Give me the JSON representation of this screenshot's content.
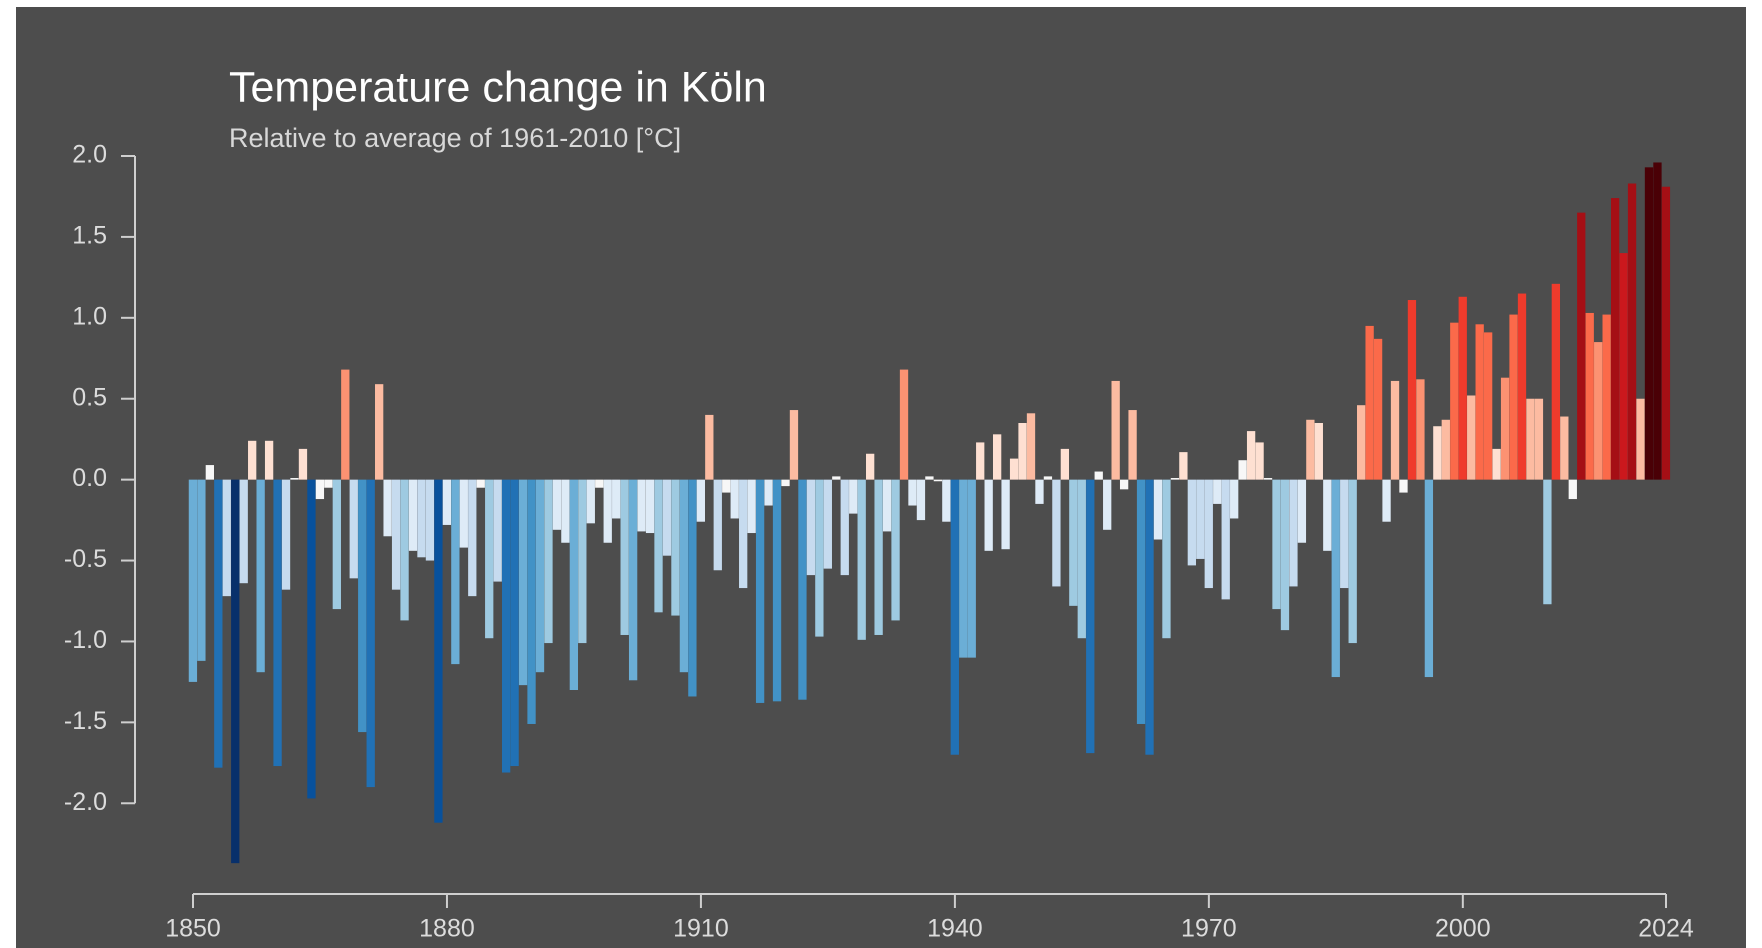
{
  "chart_data": {
    "type": "bar",
    "title": "Temperature change in Köln",
    "subtitle": "Relative to average of 1961-2010  [°C]",
    "x": [
      1850,
      1851,
      1852,
      1853,
      1854,
      1855,
      1856,
      1857,
      1858,
      1859,
      1860,
      1861,
      1862,
      1863,
      1864,
      1865,
      1866,
      1867,
      1868,
      1869,
      1870,
      1871,
      1872,
      1873,
      1874,
      1875,
      1876,
      1877,
      1878,
      1879,
      1880,
      1881,
      1882,
      1883,
      1884,
      1885,
      1886,
      1887,
      1888,
      1889,
      1890,
      1891,
      1892,
      1893,
      1894,
      1895,
      1896,
      1897,
      1898,
      1899,
      1900,
      1901,
      1902,
      1903,
      1904,
      1905,
      1906,
      1907,
      1908,
      1909,
      1910,
      1911,
      1912,
      1913,
      1914,
      1915,
      1916,
      1917,
      1918,
      1919,
      1920,
      1921,
      1922,
      1923,
      1924,
      1925,
      1926,
      1927,
      1928,
      1929,
      1930,
      1931,
      1932,
      1933,
      1934,
      1935,
      1936,
      1937,
      1938,
      1939,
      1940,
      1941,
      1942,
      1943,
      1944,
      1945,
      1946,
      1947,
      1948,
      1949,
      1950,
      1951,
      1952,
      1953,
      1954,
      1955,
      1956,
      1957,
      1958,
      1959,
      1960,
      1961,
      1962,
      1963,
      1964,
      1965,
      1966,
      1967,
      1968,
      1969,
      1970,
      1971,
      1972,
      1973,
      1974,
      1975,
      1976,
      1977,
      1978,
      1979,
      1980,
      1981,
      1982,
      1983,
      1984,
      1985,
      1986,
      1987,
      1988,
      1989,
      1990,
      1991,
      1992,
      1993,
      1994,
      1995,
      1996,
      1997,
      1998,
      1999,
      2000,
      2001,
      2002,
      2003,
      2004,
      2005,
      2006,
      2007,
      2008,
      2009,
      2010,
      2011,
      2012,
      2013,
      2014,
      2015,
      2016,
      2017,
      2018,
      2019,
      2020,
      2021,
      2022,
      2023,
      2024
    ],
    "values": [
      -1.25,
      -1.12,
      0.09,
      -1.78,
      -0.72,
      -2.37,
      -0.64,
      0.24,
      -1.19,
      0.24,
      -1.77,
      -0.68,
      0.01,
      0.19,
      -1.97,
      -0.12,
      -0.05,
      -0.8,
      0.68,
      -0.61,
      -1.56,
      -1.9,
      0.59,
      -0.35,
      -0.68,
      -0.87,
      -0.44,
      -0.48,
      -0.5,
      -2.12,
      -0.28,
      -1.14,
      -0.42,
      -0.72,
      -0.05,
      -0.98,
      -0.63,
      -1.81,
      -1.77,
      -1.27,
      -1.51,
      -1.19,
      -1.01,
      -0.31,
      -0.39,
      -1.3,
      -1.01,
      -0.27,
      -0.05,
      -0.39,
      -0.24,
      -0.96,
      -1.24,
      -0.32,
      -0.33,
      -0.82,
      -0.47,
      -0.84,
      -1.19,
      -1.34,
      -0.26,
      0.4,
      -0.56,
      -0.08,
      -0.24,
      -0.67,
      -0.33,
      -1.38,
      -0.16,
      -1.37,
      -0.04,
      0.43,
      -1.36,
      -0.59,
      -0.97,
      -0.55,
      0.02,
      -0.59,
      -0.21,
      -0.99,
      0.16,
      -0.96,
      -0.32,
      -0.87,
      0.68,
      -0.16,
      -0.25,
      0.02,
      -0.01,
      -0.26,
      -1.7,
      -1.1,
      -1.1,
      0.23,
      -0.44,
      0.28,
      -0.43,
      0.13,
      0.35,
      0.41,
      -0.15,
      0.02,
      -0.66,
      0.19,
      -0.78,
      -0.98,
      -1.69,
      0.05,
      -0.31,
      0.61,
      -0.06,
      0.43,
      -1.51,
      -1.7,
      -0.37,
      -0.98,
      0.01,
      0.17,
      -0.53,
      -0.49,
      -0.67,
      -0.15,
      -0.74,
      -0.24,
      0.12,
      0.3,
      0.23,
      0.01,
      -0.8,
      -0.93,
      -0.66,
      -0.39,
      0.37,
      0.35,
      -0.44,
      -1.22,
      -0.67,
      -1.01,
      0.46,
      0.95,
      0.87,
      -0.26,
      0.61,
      -0.08,
      1.11,
      0.62,
      -1.22,
      0.33,
      0.37,
      0.97,
      1.13,
      0.52,
      0.96,
      0.91,
      0.19,
      0.63,
      1.02,
      1.15,
      0.5,
      0.5,
      -0.77,
      1.21,
      0.39,
      -0.12,
      1.65,
      1.03,
      0.85,
      1.02,
      1.74,
      1.4,
      1.83,
      0.5,
      1.93,
      1.96,
      1.81
    ],
    "colormap": [
      "#08306b",
      "#08519c",
      "#2171b5",
      "#4292c6",
      "#6baed6",
      "#9ecae1",
      "#c6dbef",
      "#deebf7",
      "#f7f7f7",
      "#fee0d2",
      "#fcbba1",
      "#fc9272",
      "#fb6a4a",
      "#ef3b2c",
      "#cb181d",
      "#a50f15",
      "#4a0006"
    ],
    "xlim": [
      1850,
      2024
    ],
    "xticks": [
      1850,
      1880,
      1910,
      1940,
      1970,
      2000,
      2024
    ],
    "ylim": [
      -2.4,
      2.0
    ],
    "yticks": [
      {
        "value": 2,
        "label": "2.0"
      },
      {
        "value": 1.5,
        "label": "1.5"
      },
      {
        "value": 1,
        "label": "1.0"
      },
      {
        "value": 0.5,
        "label": "0.5"
      },
      {
        "value": 0,
        "label": "0.0"
      },
      {
        "value": -0.5,
        "label": "-0.5"
      },
      {
        "value": -1,
        "label": "-1.0"
      },
      {
        "value": -1.5,
        "label": "-1.5"
      },
      {
        "value": -2,
        "label": "-2.0"
      }
    ]
  }
}
